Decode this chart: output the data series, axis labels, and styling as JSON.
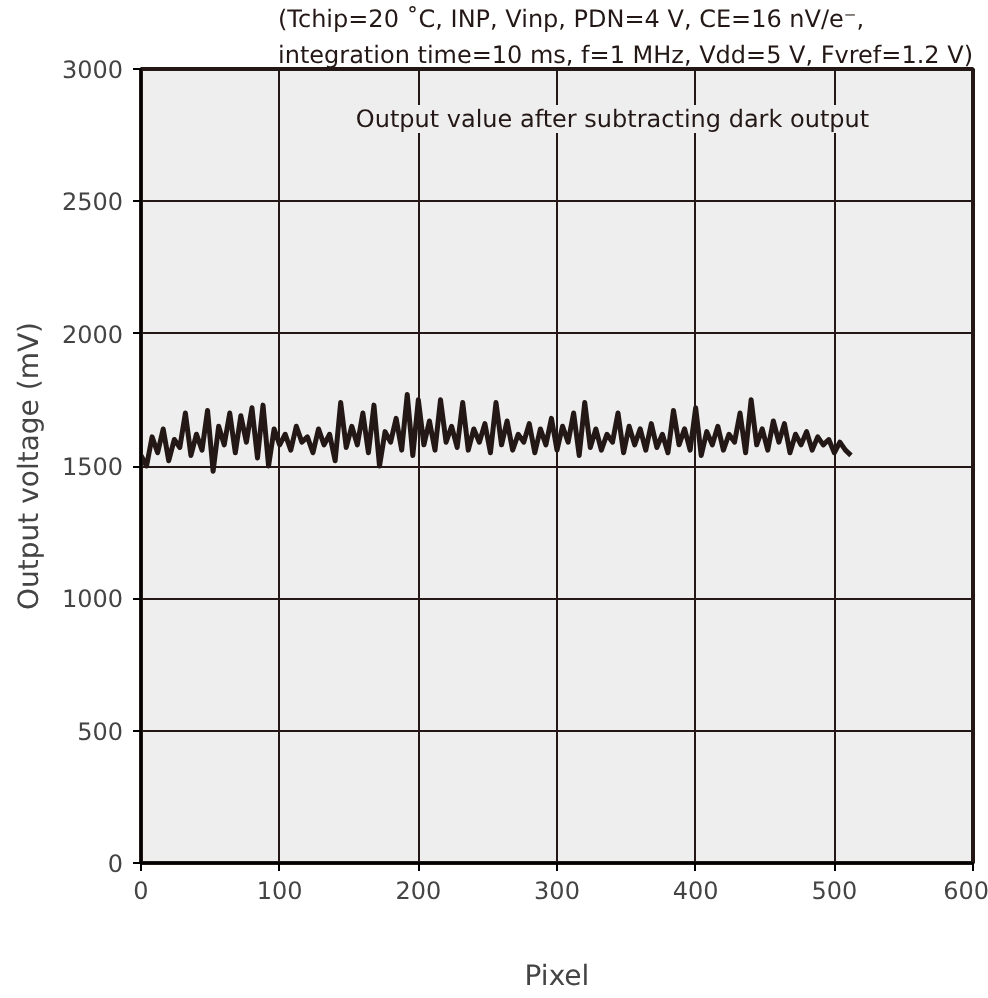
{
  "chart_data": {
    "type": "line",
    "subtitle": "(Tchip=20 ˚C, INP, Vinp, PDN=4 V, CE=16 nV/e⁻,\nintegration time=10 ms, f=1 MHz, Vdd=5 V, Fvref=1.2 V)",
    "xlabel": "Pixel",
    "ylabel": "Output voltage (mV)",
    "annotations": [
      "Output value after subtracting dark output"
    ],
    "xlim": [
      0,
      600
    ],
    "ylim": [
      0,
      3000
    ],
    "xticks": [
      0,
      100,
      200,
      300,
      400,
      500,
      600
    ],
    "yticks": [
      0,
      500,
      1000,
      1500,
      2000,
      2500,
      3000
    ],
    "grid": true,
    "series": [
      {
        "color": "#231815",
        "x": [
          0,
          4,
          8,
          12,
          16,
          20,
          24,
          28,
          32,
          36,
          40,
          44,
          48,
          52,
          56,
          60,
          64,
          68,
          72,
          76,
          80,
          84,
          88,
          92,
          96,
          100,
          104,
          108,
          112,
          116,
          120,
          124,
          128,
          132,
          136,
          140,
          144,
          148,
          152,
          156,
          160,
          164,
          168,
          172,
          176,
          180,
          184,
          188,
          192,
          196,
          200,
          204,
          208,
          212,
          216,
          220,
          224,
          228,
          232,
          236,
          240,
          244,
          248,
          252,
          256,
          260,
          264,
          268,
          272,
          276,
          280,
          284,
          288,
          292,
          296,
          300,
          304,
          308,
          312,
          316,
          320,
          324,
          328,
          332,
          336,
          340,
          344,
          348,
          352,
          356,
          360,
          364,
          368,
          372,
          376,
          380,
          384,
          388,
          392,
          396,
          400,
          404,
          408,
          412,
          416,
          420,
          424,
          428,
          432,
          436,
          440,
          444,
          448,
          452,
          456,
          460,
          464,
          468,
          472,
          476,
          480,
          484,
          488,
          492,
          496,
          500,
          504,
          508,
          512
        ],
        "values": [
          1540,
          1500,
          1610,
          1550,
          1640,
          1520,
          1600,
          1570,
          1700,
          1540,
          1620,
          1560,
          1710,
          1480,
          1650,
          1580,
          1700,
          1550,
          1690,
          1590,
          1720,
          1530,
          1730,
          1500,
          1640,
          1580,
          1620,
          1560,
          1650,
          1590,
          1610,
          1550,
          1640,
          1580,
          1620,
          1520,
          1740,
          1570,
          1650,
          1580,
          1700,
          1550,
          1730,
          1500,
          1630,
          1590,
          1680,
          1560,
          1770,
          1540,
          1750,
          1580,
          1670,
          1560,
          1750,
          1590,
          1650,
          1570,
          1740,
          1560,
          1640,
          1590,
          1660,
          1550,
          1740,
          1580,
          1670,
          1560,
          1620,
          1590,
          1660,
          1550,
          1640,
          1580,
          1680,
          1560,
          1650,
          1590,
          1700,
          1540,
          1740,
          1570,
          1640,
          1560,
          1620,
          1590,
          1700,
          1550,
          1650,
          1580,
          1640,
          1560,
          1660,
          1570,
          1620,
          1550,
          1710,
          1580,
          1640,
          1560,
          1720,
          1540,
          1630,
          1580,
          1650,
          1560,
          1620,
          1590,
          1700,
          1550,
          1750,
          1580,
          1640,
          1560,
          1670,
          1590,
          1660,
          1550,
          1620,
          1580,
          1630,
          1560,
          1610,
          1580,
          1600,
          1550,
          1590,
          1560,
          1540
        ]
      }
    ]
  }
}
